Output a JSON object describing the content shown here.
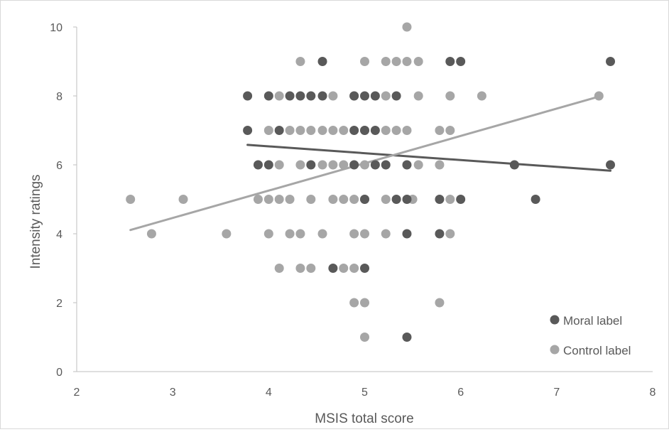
{
  "chart_data": {
    "type": "scatter",
    "title": "",
    "xlabel": "MSIS total score",
    "ylabel": "Intensity ratings",
    "xlim": [
      2,
      8
    ],
    "ylim": [
      0,
      10
    ],
    "xticks": [
      2,
      3,
      4,
      5,
      6,
      7,
      8
    ],
    "yticks": [
      0,
      2,
      4,
      6,
      8,
      10
    ],
    "grid": false,
    "legend_position": "bottom-right",
    "series": [
      {
        "name": "Moral label",
        "color": "#595959",
        "points": [
          [
            4.56,
            9
          ],
          [
            5.89,
            9
          ],
          [
            6.0,
            9
          ],
          [
            7.56,
            9
          ],
          [
            3.78,
            8
          ],
          [
            4.0,
            8
          ],
          [
            4.22,
            8
          ],
          [
            4.33,
            8
          ],
          [
            4.44,
            8
          ],
          [
            4.56,
            8
          ],
          [
            4.89,
            8
          ],
          [
            5.0,
            8
          ],
          [
            5.11,
            8
          ],
          [
            5.33,
            8
          ],
          [
            3.78,
            7
          ],
          [
            4.11,
            7
          ],
          [
            4.89,
            7
          ],
          [
            5.0,
            7
          ],
          [
            5.11,
            7
          ],
          [
            3.89,
            6
          ],
          [
            4.0,
            6
          ],
          [
            4.44,
            6
          ],
          [
            4.89,
            6
          ],
          [
            5.11,
            6
          ],
          [
            5.22,
            6
          ],
          [
            5.44,
            6
          ],
          [
            6.56,
            6
          ],
          [
            7.56,
            6
          ],
          [
            5.0,
            5
          ],
          [
            5.33,
            5
          ],
          [
            5.44,
            5
          ],
          [
            5.78,
            5
          ],
          [
            6.0,
            5
          ],
          [
            6.78,
            5
          ],
          [
            5.44,
            4
          ],
          [
            5.78,
            4
          ],
          [
            4.67,
            3
          ],
          [
            5.0,
            3
          ],
          [
            5.44,
            1
          ]
        ],
        "trendline": {
          "x": [
            3.78,
            7.56
          ],
          "y": [
            6.58,
            5.83
          ]
        }
      },
      {
        "name": "Control label",
        "color": "#a6a6a6",
        "points": [
          [
            5.44,
            10
          ],
          [
            4.33,
            9
          ],
          [
            5.0,
            9
          ],
          [
            5.22,
            9
          ],
          [
            5.33,
            9
          ],
          [
            5.44,
            9
          ],
          [
            5.56,
            9
          ],
          [
            4.11,
            8
          ],
          [
            4.67,
            8
          ],
          [
            4.89,
            8
          ],
          [
            5.22,
            8
          ],
          [
            5.56,
            8
          ],
          [
            5.89,
            8
          ],
          [
            6.22,
            8
          ],
          [
            7.44,
            8
          ],
          [
            4.0,
            7
          ],
          [
            4.22,
            7
          ],
          [
            4.33,
            7
          ],
          [
            4.44,
            7
          ],
          [
            4.56,
            7
          ],
          [
            4.67,
            7
          ],
          [
            4.78,
            7
          ],
          [
            5.0,
            7
          ],
          [
            5.22,
            7
          ],
          [
            5.33,
            7
          ],
          [
            5.44,
            7
          ],
          [
            5.78,
            7
          ],
          [
            5.89,
            7
          ],
          [
            4.11,
            6
          ],
          [
            4.33,
            6
          ],
          [
            4.56,
            6
          ],
          [
            4.67,
            6
          ],
          [
            4.78,
            6
          ],
          [
            5.0,
            6
          ],
          [
            5.56,
            6
          ],
          [
            5.78,
            6
          ],
          [
            2.56,
            5
          ],
          [
            3.11,
            5
          ],
          [
            3.89,
            5
          ],
          [
            4.0,
            5
          ],
          [
            4.11,
            5
          ],
          [
            4.22,
            5
          ],
          [
            4.44,
            5
          ],
          [
            4.67,
            5
          ],
          [
            4.78,
            5
          ],
          [
            4.89,
            5
          ],
          [
            5.0,
            5
          ],
          [
            5.22,
            5
          ],
          [
            5.5,
            5
          ],
          [
            5.89,
            5
          ],
          [
            2.78,
            4
          ],
          [
            3.56,
            4
          ],
          [
            4.0,
            4
          ],
          [
            4.22,
            4
          ],
          [
            4.33,
            4
          ],
          [
            4.56,
            4
          ],
          [
            4.89,
            4
          ],
          [
            5.0,
            4
          ],
          [
            5.22,
            4
          ],
          [
            5.89,
            4
          ],
          [
            4.11,
            3
          ],
          [
            4.33,
            3
          ],
          [
            4.44,
            3
          ],
          [
            4.78,
            3
          ],
          [
            4.89,
            3
          ],
          [
            4.89,
            2
          ],
          [
            5.0,
            2
          ],
          [
            5.78,
            2
          ],
          [
            5.0,
            1
          ]
        ],
        "trendline": {
          "x": [
            2.56,
            7.44
          ],
          "y": [
            4.11,
            7.98
          ]
        }
      }
    ]
  }
}
